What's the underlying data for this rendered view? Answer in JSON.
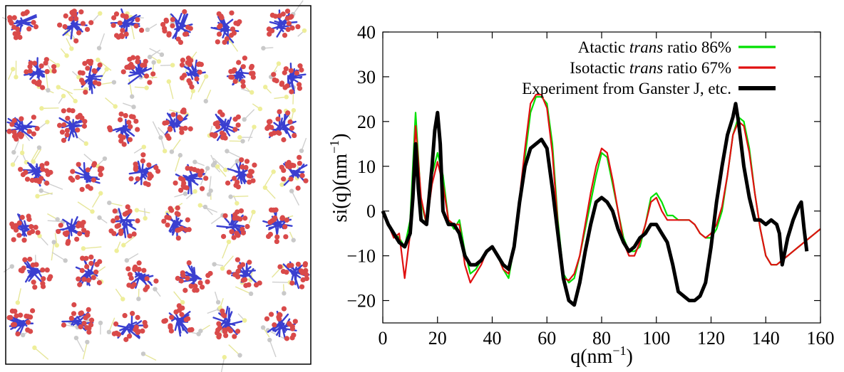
{
  "panel_left": {
    "colors": {
      "blue": "#3a3fd0",
      "red": "#d94a4a",
      "yellow": "#eeee99",
      "grey": "#c9c9c9"
    }
  },
  "chart_data": {
    "type": "line",
    "xlabel": "q(nm⁻¹)",
    "ylabel": "si(q)(nm⁻¹)",
    "xlim": [
      0,
      160
    ],
    "ylim": [
      -25,
      40
    ],
    "xticks": [
      0,
      20,
      40,
      60,
      80,
      100,
      120,
      140,
      160
    ],
    "yticks": [
      -20,
      -10,
      0,
      10,
      20,
      30,
      40
    ],
    "legend_position": "top-right",
    "grid": false,
    "series": [
      {
        "name": "Atactic trans ratio 86%",
        "name_parts": [
          "Atactic ",
          "trans",
          " ratio 86%"
        ],
        "color": "#00e000",
        "x": [
          0,
          2,
          4,
          6,
          8,
          10,
          12,
          14,
          16,
          18,
          20,
          22,
          24,
          26,
          28,
          30,
          32,
          34,
          36,
          38,
          40,
          42,
          44,
          46,
          48,
          50,
          52,
          54,
          56,
          58,
          60,
          62,
          64,
          66,
          68,
          70,
          72,
          74,
          76,
          78,
          80,
          82,
          84,
          86,
          88,
          90,
          92,
          94,
          96,
          98,
          100,
          102,
          104,
          106,
          108,
          110,
          112,
          114,
          116,
          118,
          120,
          122,
          124,
          126,
          128,
          130,
          132,
          134,
          136,
          138,
          140,
          142,
          144,
          146,
          148,
          150,
          152,
          154,
          156,
          158,
          160
        ],
        "y": [
          0,
          -3,
          -5,
          -6,
          -8,
          -2,
          22,
          2,
          -3,
          8,
          13,
          8,
          -2,
          -4,
          -2,
          -9,
          -14,
          -13,
          -11,
          -9,
          -8,
          -10,
          -13,
          -15,
          -8,
          2,
          12,
          22,
          25.5,
          25.5,
          24,
          15,
          -2,
          -14,
          -16,
          -15,
          -10,
          -4,
          2,
          8,
          13,
          12,
          6,
          0,
          -6,
          -9,
          -9,
          -8,
          -3,
          3,
          4,
          2,
          -1,
          -1,
          -2,
          -2,
          -2,
          -3,
          -5,
          -6,
          -6,
          -4,
          0,
          8,
          17,
          21,
          20,
          14,
          4,
          -4,
          -10,
          -12,
          -12,
          -11,
          -10,
          -9,
          -8,
          -7,
          -6,
          -5,
          -4
        ]
      },
      {
        "name": "Isotactic trans ratio 67%",
        "name_parts": [
          "Isotactic ",
          "trans",
          " ratio 67%"
        ],
        "color": "#e01010",
        "x": [
          0,
          2,
          4,
          6,
          8,
          10,
          12,
          14,
          16,
          18,
          20,
          22,
          24,
          26,
          28,
          30,
          32,
          34,
          36,
          38,
          40,
          42,
          44,
          46,
          48,
          50,
          52,
          54,
          56,
          58,
          60,
          62,
          64,
          66,
          68,
          70,
          72,
          74,
          76,
          78,
          80,
          82,
          84,
          86,
          88,
          90,
          92,
          94,
          96,
          98,
          100,
          102,
          104,
          106,
          108,
          110,
          112,
          114,
          116,
          118,
          120,
          122,
          124,
          126,
          128,
          130,
          132,
          134,
          136,
          138,
          140,
          142,
          144,
          146,
          148,
          150,
          152,
          154,
          156,
          158,
          160
        ],
        "y": [
          0,
          -3,
          -6,
          -5,
          -15,
          -5,
          19,
          3,
          -3,
          6,
          11,
          6,
          -2,
          -3,
          -3,
          -12,
          -16,
          -14,
          -12,
          -9,
          -8,
          -10,
          -13,
          -14,
          -8,
          3,
          14,
          24,
          26,
          26,
          23,
          13,
          -3,
          -15,
          -15.5,
          -14,
          -10,
          -3,
          4,
          10,
          14,
          13,
          7,
          0,
          -7,
          -10,
          -10,
          -7,
          -3,
          2,
          3,
          0,
          -2,
          -2,
          -2,
          -2,
          -2,
          -3,
          -5,
          -6,
          -5,
          -3,
          1,
          8,
          17,
          20,
          19,
          13,
          4,
          -4,
          -10,
          -12,
          -12,
          -11,
          -10,
          -9,
          -8,
          -7,
          -6,
          -5,
          -4
        ]
      },
      {
        "name": "Experiment from Ganster J, etc.",
        "name_parts": [
          "Experiment from Ganster J, etc.",
          "",
          ""
        ],
        "color": "#000000",
        "x": [
          0,
          2,
          4,
          6,
          8,
          10,
          11,
          12,
          13,
          14,
          16,
          18,
          19,
          20,
          21,
          22,
          24,
          26,
          28,
          30,
          32,
          34,
          36,
          38,
          40,
          42,
          44,
          46,
          48,
          50,
          52,
          54,
          56,
          58,
          60,
          62,
          64,
          66,
          68,
          70,
          72,
          74,
          76,
          78,
          80,
          82,
          84,
          86,
          88,
          90,
          92,
          94,
          96,
          98,
          100,
          102,
          104,
          106,
          108,
          110,
          112,
          114,
          116,
          118,
          120,
          122,
          124,
          126,
          128,
          129,
          130,
          131,
          132,
          134,
          136,
          138,
          140,
          142,
          144,
          145,
          146,
          148,
          150,
          152,
          153,
          154,
          155
        ],
        "y": [
          0,
          -3,
          -5,
          -7,
          -8,
          -5,
          3,
          15,
          5,
          -2,
          -3,
          10,
          18,
          22,
          15,
          0,
          -3,
          -3,
          -5,
          -10,
          -12,
          -12,
          -11,
          -9,
          -8,
          -10,
          -12,
          -13,
          -8,
          2,
          10,
          14,
          15,
          16,
          14,
          5,
          -5,
          -15,
          -20,
          -21,
          -16,
          -9,
          -3,
          2,
          3,
          2,
          0,
          -4,
          -7,
          -9,
          -8,
          -6,
          -5,
          -3,
          -3,
          -5,
          -7,
          -12,
          -18,
          -19,
          -20,
          -20,
          -19,
          -16,
          -8,
          2,
          10,
          17,
          21,
          24,
          20,
          15,
          10,
          3,
          -2,
          -2,
          -3,
          -2,
          -3,
          -5,
          -12,
          -6,
          -2,
          1,
          2,
          -4,
          -9
        ]
      }
    ]
  }
}
